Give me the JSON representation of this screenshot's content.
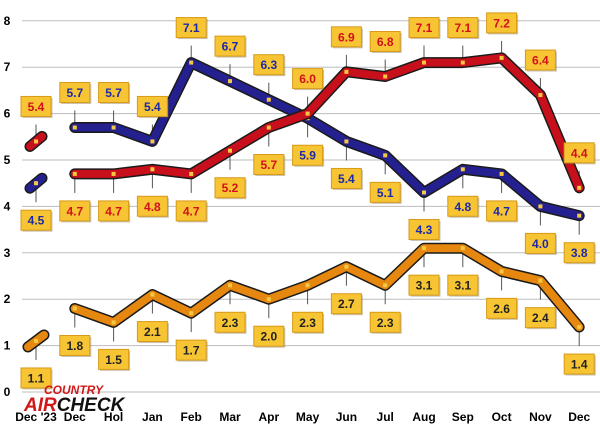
{
  "chart_data": {
    "type": "line",
    "title": "",
    "xlabel": "",
    "ylabel": "",
    "ylim": [
      0,
      8
    ],
    "yticks": [
      0,
      1,
      2,
      3,
      4,
      5,
      6,
      7,
      8
    ],
    "grid": true,
    "categories": [
      "Dec '23",
      "Dec",
      "Hol",
      "Jan",
      "Feb",
      "Mar",
      "Apr",
      "May",
      "Jun",
      "Jul",
      "Aug",
      "Sep",
      "Oct",
      "Nov",
      "Dec"
    ],
    "series": [
      {
        "name": "blue",
        "color": "#25208f",
        "label_color": "#1c2aa8",
        "segments": [
          [
            0,
            0
          ],
          [
            1,
            14
          ]
        ],
        "values": [
          4.5,
          5.7,
          5.7,
          5.4,
          7.1,
          6.7,
          6.3,
          5.9,
          5.4,
          5.1,
          4.3,
          4.8,
          4.7,
          4.0,
          3.8
        ],
        "label_positions": [
          "below",
          "above",
          "above",
          "above",
          "above",
          "above",
          "above",
          "below",
          "below",
          "below",
          "below",
          "below",
          "below",
          "below",
          "below"
        ]
      },
      {
        "name": "red",
        "color": "#c8101c",
        "label_color": "#d3101b",
        "segments": [
          [
            0,
            0
          ],
          [
            1,
            14
          ]
        ],
        "values": [
          5.4,
          4.7,
          4.7,
          4.8,
          4.7,
          5.2,
          5.7,
          6.0,
          6.9,
          6.8,
          7.1,
          7.1,
          7.2,
          6.4,
          4.4
        ],
        "label_positions": [
          "above",
          "below",
          "below",
          "below",
          "below",
          "below",
          "below",
          "above",
          "above",
          "above",
          "above",
          "above",
          "above",
          "above",
          "above"
        ]
      },
      {
        "name": "orange",
        "color": "#e6880f",
        "label_color": "#222222",
        "segments": [
          [
            0,
            0
          ],
          [
            1,
            14
          ]
        ],
        "values": [
          1.1,
          1.8,
          1.5,
          2.1,
          1.7,
          2.3,
          2.0,
          2.3,
          2.7,
          2.3,
          3.1,
          3.1,
          2.6,
          2.4,
          1.4
        ],
        "label_positions": [
          "below",
          "below",
          "below",
          "below",
          "below",
          "below",
          "below",
          "below",
          "below",
          "below",
          "below",
          "below",
          "below",
          "below",
          "below"
        ]
      }
    ]
  },
  "logo": {
    "line1": "COUNTRY",
    "line2a": "AIR",
    "line2b": "CHECK"
  }
}
